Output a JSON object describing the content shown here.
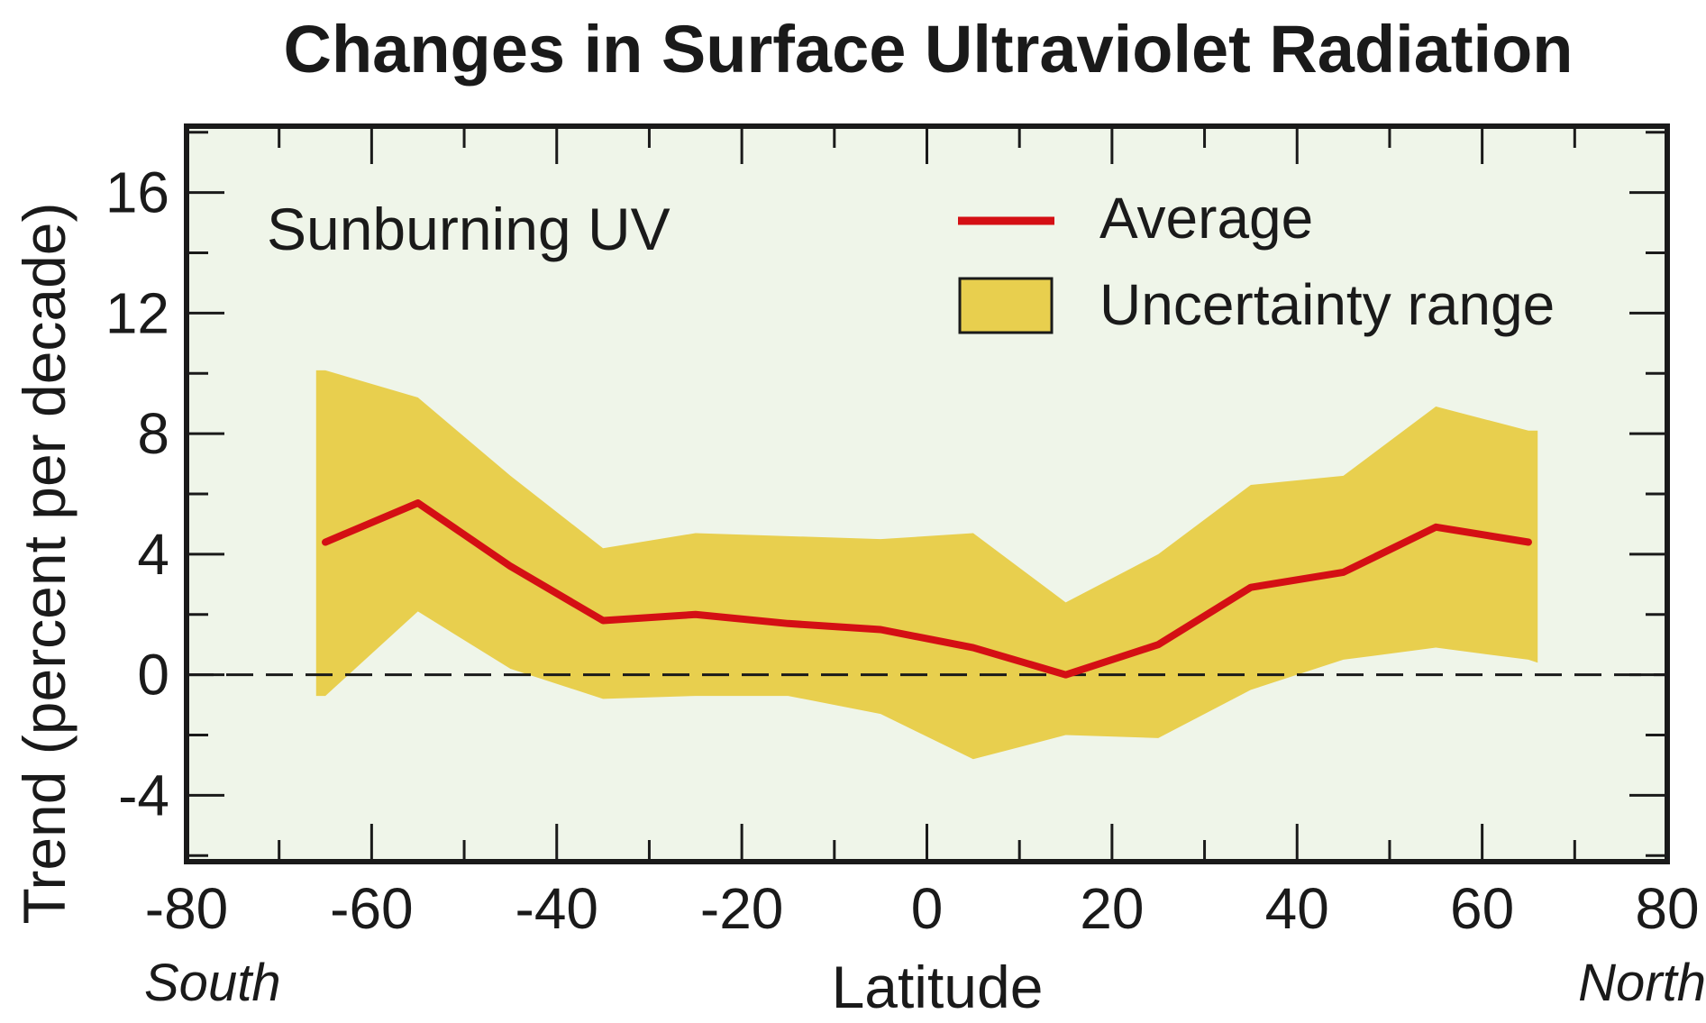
{
  "chart_data": {
    "type": "line",
    "title": "Changes in Surface Ultraviolet Radiation",
    "annotation": "Sunburning UV",
    "xlabel": "Latitude",
    "ylabel": "Trend (percent per decade)",
    "x_left_note": "South",
    "x_right_note": "North",
    "xlim": [
      -80,
      80
    ],
    "ylim": [
      -6.2,
      18.2
    ],
    "x_ticks": [
      -80,
      -60,
      -40,
      -20,
      0,
      20,
      40,
      60,
      80
    ],
    "y_ticks": [
      -4,
      0,
      4,
      8,
      12,
      16
    ],
    "x_tick_labels": [
      "-80",
      "-60",
      "-40",
      "-20",
      "0",
      "20",
      "40",
      "60",
      "80"
    ],
    "y_tick_labels": [
      "-4",
      "0",
      "4",
      "8",
      "12",
      "16"
    ],
    "reference_line": {
      "y": 0,
      "style": "dashed"
    },
    "grid": false,
    "legend": {
      "placement": "top-right",
      "average_label": "Average",
      "range_label": "Uncertainty range"
    },
    "series": [
      {
        "name": "Average",
        "color": "#d40f14",
        "x": [
          -65,
          -55,
          -45,
          -35,
          -25,
          -15,
          -5,
          5,
          15,
          25,
          35,
          45,
          55,
          65
        ],
        "values": [
          4.4,
          5.7,
          3.6,
          1.8,
          2.0,
          1.7,
          1.5,
          0.9,
          0.0,
          1.0,
          2.9,
          3.4,
          4.9,
          4.4
        ]
      }
    ],
    "uncertainty_range": {
      "name": "Uncertainty range",
      "color": "#e8cf4e",
      "x": [
        -66,
        -65,
        -55,
        -45,
        -35,
        -25,
        -15,
        -5,
        5,
        15,
        25,
        35,
        45,
        55,
        65,
        66
      ],
      "upper": [
        10.1,
        10.1,
        9.2,
        6.6,
        4.2,
        4.7,
        4.6,
        4.5,
        4.7,
        2.4,
        4.0,
        6.3,
        6.6,
        8.9,
        8.1,
        8.1
      ],
      "lower": [
        -0.7,
        -0.7,
        2.1,
        0.2,
        -0.8,
        -0.7,
        -0.7,
        -1.3,
        -2.8,
        -2.0,
        -2.1,
        -0.5,
        0.5,
        0.9,
        0.5,
        0.4
      ]
    },
    "colors": {
      "plot_background": "#eff5e9",
      "frame": "#1a1a1a",
      "legend_swatch_border": "#1a1a1a"
    }
  }
}
